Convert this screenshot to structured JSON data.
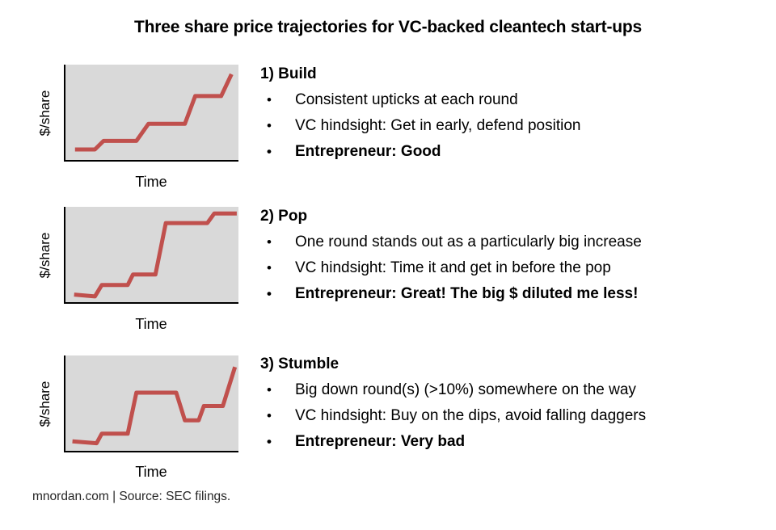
{
  "title": "Three share price trajectories for VC-backed cleantech start-ups",
  "footer": "mnordan.com | Source: SEC filings.",
  "glyphs": {
    "bullet": "•"
  },
  "colors": {
    "line": "#c0504d",
    "plot_background": "#d9d9d9",
    "axis": "#000000",
    "text": "#000000"
  },
  "sections": [
    {
      "heading": "1) Build",
      "bullets": [
        {
          "text": "Consistent upticks at each round",
          "bold": false
        },
        {
          "text": "VC hindsight: Get in early, defend position",
          "bold": false
        },
        {
          "text": "Entrepreneur: Good",
          "bold": true
        }
      ]
    },
    {
      "heading": "2) Pop",
      "bullets": [
        {
          "text": "One round stands out as a particularly big increase",
          "bold": false
        },
        {
          "text": "VC hindsight: Time it and get in before the pop",
          "bold": false
        },
        {
          "text": "Entrepreneur: Great! The big $ diluted me less!",
          "bold": true
        }
      ]
    },
    {
      "heading": "3) Stumble",
      "bullets": [
        {
          "text": "Big down round(s) (>10%) somewhere on the way",
          "bold": false
        },
        {
          "text": "VC hindsight: Buy on the dips, avoid falling daggers",
          "bold": false
        },
        {
          "text": "Entrepreneur: Very bad",
          "bold": true
        }
      ]
    }
  ],
  "chart_data": [
    {
      "type": "line",
      "name": "Build",
      "xlabel": "Time",
      "ylabel": "$/share",
      "line_color": "#c0504d",
      "plot_bg": "#d9d9d9",
      "axes_quantified": false,
      "x_range": [
        0,
        1
      ],
      "y_range": [
        0,
        1
      ],
      "points": [
        [
          0.055,
          0.11
        ],
        [
          0.17,
          0.11
        ],
        [
          0.22,
          0.2
        ],
        [
          0.41,
          0.2
        ],
        [
          0.48,
          0.38
        ],
        [
          0.69,
          0.38
        ],
        [
          0.75,
          0.67
        ],
        [
          0.9,
          0.67
        ],
        [
          0.96,
          0.9
        ]
      ]
    },
    {
      "type": "line",
      "name": "Pop",
      "xlabel": "Time",
      "ylabel": "$/share",
      "line_color": "#c0504d",
      "plot_bg": "#d9d9d9",
      "axes_quantified": false,
      "x_range": [
        0,
        1
      ],
      "y_range": [
        0,
        1
      ],
      "points": [
        [
          0.05,
          0.08
        ],
        [
          0.17,
          0.06
        ],
        [
          0.21,
          0.18
        ],
        [
          0.36,
          0.18
        ],
        [
          0.39,
          0.29
        ],
        [
          0.52,
          0.29
        ],
        [
          0.58,
          0.83
        ],
        [
          0.82,
          0.83
        ],
        [
          0.86,
          0.93
        ],
        [
          0.99,
          0.93
        ]
      ]
    },
    {
      "type": "line",
      "name": "Stumble",
      "xlabel": "Time",
      "ylabel": "$/share",
      "line_color": "#c0504d",
      "plot_bg": "#d9d9d9",
      "axes_quantified": false,
      "x_range": [
        0,
        1
      ],
      "y_range": [
        0,
        1
      ],
      "points": [
        [
          0.04,
          0.1
        ],
        [
          0.18,
          0.08
        ],
        [
          0.21,
          0.18
        ],
        [
          0.36,
          0.18
        ],
        [
          0.41,
          0.61
        ],
        [
          0.64,
          0.61
        ],
        [
          0.69,
          0.32
        ],
        [
          0.77,
          0.32
        ],
        [
          0.8,
          0.47
        ],
        [
          0.91,
          0.47
        ],
        [
          0.98,
          0.88
        ]
      ]
    }
  ]
}
